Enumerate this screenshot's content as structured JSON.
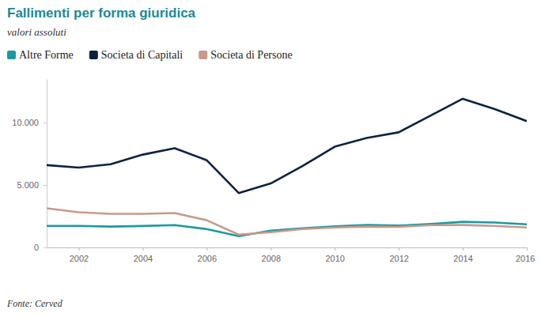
{
  "chart_data": {
    "type": "line",
    "title": "Fallimenti per forma giuridica",
    "subtitle": "valori assoluti",
    "source": "Fonte: Cerved",
    "x": [
      2001,
      2002,
      2003,
      2004,
      2005,
      2006,
      2007,
      2008,
      2009,
      2010,
      2011,
      2012,
      2013,
      2014,
      2015,
      2016
    ],
    "series": [
      {
        "name": "Altre Forme",
        "color": "#1a9aa0",
        "values": [
          1730,
          1730,
          1670,
          1720,
          1790,
          1470,
          900,
          1350,
          1540,
          1700,
          1800,
          1750,
          1880,
          2050,
          2000,
          1850
        ]
      },
      {
        "name": "Societa di Capitali",
        "color": "#0d2240",
        "values": [
          6600,
          6400,
          6670,
          7440,
          7950,
          6990,
          4360,
          5130,
          6540,
          8080,
          8780,
          9230,
          10580,
          11920,
          11090,
          10130
        ]
      },
      {
        "name": "Societa di Persone",
        "color": "#c9998a",
        "values": [
          3140,
          2820,
          2690,
          2690,
          2760,
          2180,
          1030,
          1220,
          1470,
          1600,
          1670,
          1650,
          1790,
          1800,
          1730,
          1600
        ]
      }
    ],
    "xlim": [
      2001,
      2016
    ],
    "xticks": [
      2002,
      2004,
      2006,
      2008,
      2010,
      2012,
      2014,
      2016
    ],
    "ylim": [
      0,
      13500
    ],
    "yticks": [
      {
        "value": 0,
        "label": "0"
      },
      {
        "value": 5000,
        "label": "5.000"
      },
      {
        "value": 10000,
        "label": "10.000"
      }
    ],
    "grid": false,
    "legend": "top-left"
  }
}
